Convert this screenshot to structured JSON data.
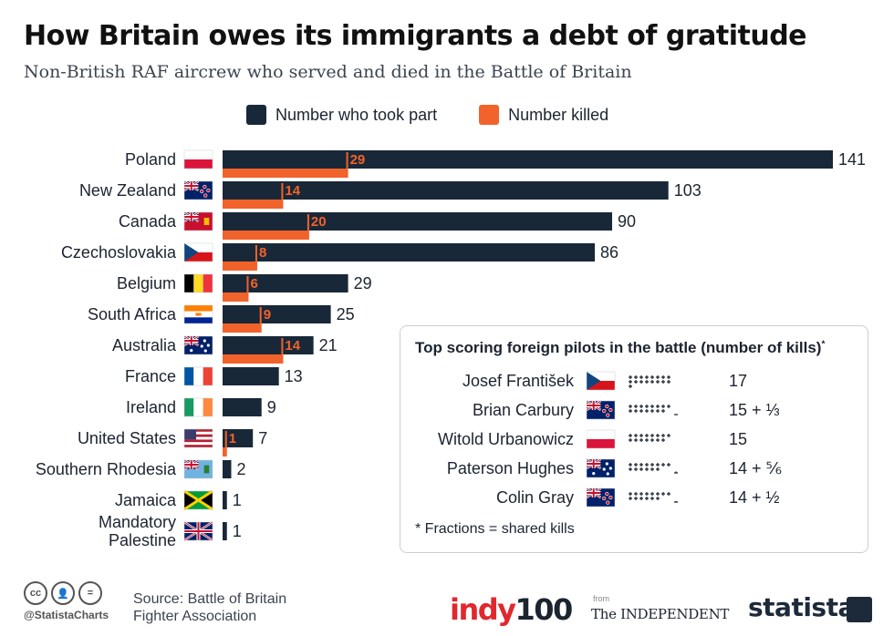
{
  "title": "How Britain owes its immigrants a debt of gratitude",
  "subtitle": "Non-British RAF aircrew who served and died in the Battle of Britain",
  "colors": {
    "took_part": "#192838",
    "killed": "#f2622b",
    "text": "#1c2430"
  },
  "legend": {
    "took_part": "Number who took part",
    "killed": "Number killed"
  },
  "chart_data": {
    "type": "bar",
    "orientation": "horizontal",
    "categories": [
      "Poland",
      "New Zealand",
      "Canada",
      "Czechoslovakia",
      "Belgium",
      "South Africa",
      "Australia",
      "France",
      "Ireland",
      "United States",
      "Southern Rhodesia",
      "Jamaica",
      "Mandatory Palestine"
    ],
    "flags": [
      "poland",
      "new-zealand",
      "canada-red-ensign",
      "czechoslovakia",
      "belgium",
      "south-africa",
      "australia",
      "france",
      "ireland",
      "united-states",
      "southern-rhodesia",
      "jamaica",
      "mandatory-palestine-union-jack"
    ],
    "series": [
      {
        "name": "Number who took part",
        "values": [
          141,
          103,
          90,
          86,
          29,
          25,
          21,
          13,
          9,
          7,
          2,
          1,
          1
        ]
      },
      {
        "name": "Number killed",
        "values": [
          29,
          14,
          20,
          8,
          6,
          9,
          14,
          null,
          null,
          1,
          null,
          null,
          null
        ]
      }
    ],
    "xlim": [
      0,
      141
    ],
    "grid": false,
    "legend_position": "top"
  },
  "inset": {
    "title": "Top scoring foreign pilots in the battle (number of kills)",
    "title_mark": "*",
    "pilots": [
      {
        "name": "Josef František",
        "flag": "czechoslovakia",
        "kills": 17,
        "label": "17"
      },
      {
        "name": "Brian Carbury",
        "flag": "new-zealand",
        "kills": 15.333,
        "label": "15 + ⅓"
      },
      {
        "name": "Witold Urbanowicz",
        "flag": "poland",
        "kills": 15,
        "label": "15"
      },
      {
        "name": "Paterson Hughes",
        "flag": "australia",
        "kills": 14.833,
        "label": "14 + ⅚"
      },
      {
        "name": "Colin Gray",
        "flag": "new-zealand",
        "kills": 14.5,
        "label": "14 + ½"
      }
    ],
    "note": "* Fractions = shared kills"
  },
  "footer": {
    "handle": "@StatistaCharts",
    "source": "Source: Battle of Britain Fighter Association",
    "indy_brand": "indy",
    "indy_num": "100",
    "from": "from",
    "independent": "The INDEPENDENT",
    "statista": "statista"
  }
}
